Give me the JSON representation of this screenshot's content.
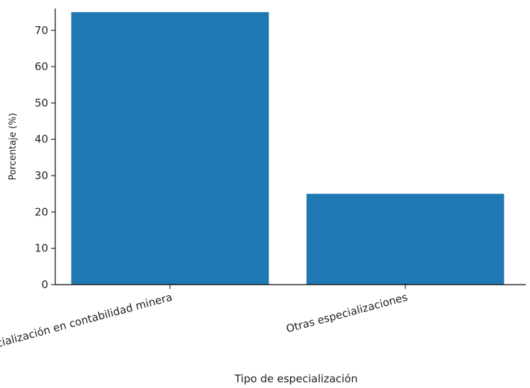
{
  "chart_data": {
    "type": "bar",
    "title": "",
    "xlabel": "Tipo de especialización",
    "ylabel": "Porcentaje (%)",
    "categories": [
      "Especialización en contabilidad minera",
      "Otras especializaciones"
    ],
    "values": [
      75,
      25
    ],
    "ylim": [
      0,
      76
    ],
    "yticks": [
      0,
      10,
      20,
      30,
      40,
      50,
      60,
      70
    ],
    "bar_color": "#1f77b4",
    "axis_color": "#000000",
    "grid": false,
    "legend": "none"
  }
}
